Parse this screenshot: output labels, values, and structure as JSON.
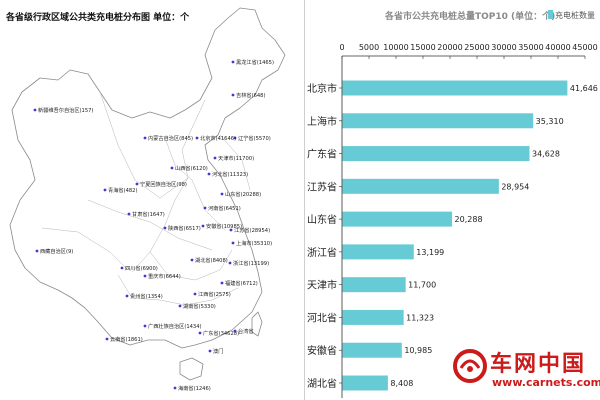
{
  "map": {
    "title": "各省级行政区域公共类充电桩分布图  单位：个",
    "regions": [
      {
        "label": "黑龙江省(1465)"
      },
      {
        "label": "吉林省(648)"
      },
      {
        "label": "辽宁省(5570)"
      },
      {
        "label": "北京市(41646)"
      },
      {
        "label": "内蒙古自治区(845)"
      },
      {
        "label": "天津市(11700)"
      },
      {
        "label": "河北省(11323)"
      },
      {
        "label": "山西省(6120)"
      },
      {
        "label": "宁夏回族自治区(98)"
      },
      {
        "label": "新疆维吾尔自治区(157)"
      },
      {
        "label": "青海省(482)"
      },
      {
        "label": "甘肃省(1647)"
      },
      {
        "label": "陕西省(6517)"
      },
      {
        "label": "河南省(6451)"
      },
      {
        "label": "山东省(20288)"
      },
      {
        "label": "江苏省(28954)"
      },
      {
        "label": "上海市(35310)"
      },
      {
        "label": "安徽省(10985)"
      },
      {
        "label": "湖北省(8408)"
      },
      {
        "label": "浙江省(13199)"
      },
      {
        "label": "西藏自治区(9)"
      },
      {
        "label": "四川省(6900)"
      },
      {
        "label": "重庆市(6644)"
      },
      {
        "label": "贵州省(1354)"
      },
      {
        "label": "湖南省(5330)"
      },
      {
        "label": "江西省(2575)"
      },
      {
        "label": "福建省(6712)"
      },
      {
        "label": "云南省(1861)"
      },
      {
        "label": "广西壮族自治区(1434)"
      },
      {
        "label": "广东省(34628)"
      },
      {
        "label": "台湾省"
      },
      {
        "label": "澳门"
      },
      {
        "label": "海南省(1246)"
      }
    ]
  },
  "chart_data": {
    "type": "bar",
    "orientation": "horizontal",
    "title": "各省市公共充电桩总量TOP10  (单位：个)",
    "categories": [
      "北京市",
      "上海市",
      "广东省",
      "江苏省",
      "山东省",
      "浙江省",
      "天津市",
      "河北省",
      "安徽省",
      "湖北省"
    ],
    "series": [
      {
        "name": "充电桩数量",
        "values": [
          41646,
          35310,
          34628,
          28954,
          20288,
          13199,
          11700,
          11323,
          10985,
          8408
        ]
      }
    ],
    "value_labels": [
      "41,646",
      "35,310",
      "34,628",
      "28,954",
      "20,288",
      "13,199",
      "11,700",
      "11,323",
      "10,985",
      "8,408"
    ],
    "xlim": [
      0,
      45000
    ],
    "xticks": [
      0,
      5000,
      10000,
      15000,
      20000,
      25000,
      30000,
      35000,
      40000,
      45000
    ],
    "grid": false,
    "legend_position": "top-right",
    "bar_color": "#67cbd6"
  },
  "watermark": {
    "name": "车网中国",
    "url": "www.carnets.com.cn"
  }
}
